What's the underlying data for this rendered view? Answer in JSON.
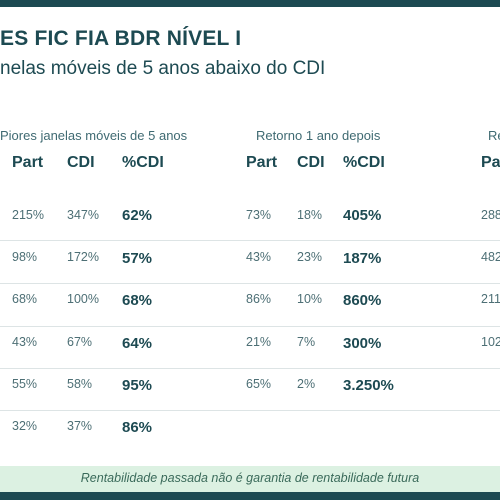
{
  "header": {
    "title": "ES FIC FIA BDR NÍVEL I",
    "subtitle": "nelas móveis de 5 anos abaixo do CDI"
  },
  "groups": [
    {
      "title": "Piores janelas móveis de 5 anos"
    },
    {
      "title": "Retorno 1 ano depois"
    },
    {
      "title": "Re"
    }
  ],
  "columns": {
    "group1": [
      "Part",
      "CDI",
      "%CDI"
    ],
    "group2": [
      "Part",
      "CDI",
      "%CDI"
    ],
    "group3": [
      "Pa"
    ]
  },
  "rows": [
    {
      "g1": [
        "215%",
        "347%",
        "62%"
      ],
      "g2": [
        "73%",
        "18%",
        "405%"
      ],
      "g3": "288"
    },
    {
      "g1": [
        "98%",
        "172%",
        "57%"
      ],
      "g2": [
        "43%",
        "23%",
        "187%"
      ],
      "g3": "482"
    },
    {
      "g1": [
        "68%",
        "100%",
        "68%"
      ],
      "g2": [
        "86%",
        "10%",
        "860%"
      ],
      "g3": "211%"
    },
    {
      "g1": [
        "43%",
        "67%",
        "64%"
      ],
      "g2": [
        "21%",
        "7%",
        "300%"
      ],
      "g3": "102"
    },
    {
      "g1": [
        "55%",
        "58%",
        "95%"
      ],
      "g2": [
        "65%",
        "2%",
        "3.250%"
      ],
      "g3": ""
    },
    {
      "g1": [
        "32%",
        "37%",
        "86%"
      ],
      "g2": [
        "",
        "",
        ""
      ],
      "g3": ""
    }
  ],
  "footer": {
    "disclaimer": "Rentabilidade passada não é garantia de rentabilidade futura"
  },
  "colors": {
    "primary": "#1d4a52",
    "footer_bg": "#dcf1e2",
    "separator": "#dde4e5"
  }
}
